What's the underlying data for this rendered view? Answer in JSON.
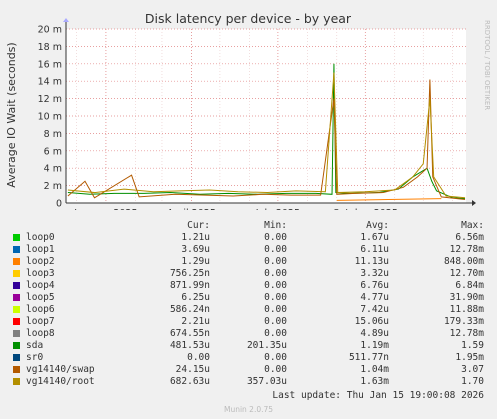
{
  "chart_data": {
    "type": "line",
    "title": "Disk latency per device - by year",
    "ylabel": "Average IO Wait (seconds)",
    "ylim": [
      0,
      0.02
    ],
    "y_ticks": [
      0,
      0.002,
      0.004,
      0.006,
      0.008,
      0.01,
      0.012,
      0.014,
      0.016,
      0.018,
      0.02
    ],
    "y_tick_labels": [
      "0",
      "2 m",
      "4 m",
      "6 m",
      "8 m",
      "10 m",
      "12 m",
      "14 m",
      "16 m",
      "18 m",
      "20 m"
    ],
    "x_tick_labels": [
      "January 2025",
      "April 2025",
      "July 2025",
      "October 2025"
    ],
    "x_range": [
      "2024-11-20",
      "2026-01-15"
    ],
    "x_ticks": [
      "2025-01-01",
      "2025-04-01",
      "2025-07-01",
      "2025-10-01"
    ],
    "grid": true,
    "series": [
      {
        "name": "loop0",
        "color": "#00cc00",
        "points": []
      },
      {
        "name": "loop1",
        "color": "#0066b3",
        "points": []
      },
      {
        "name": "loop2",
        "color": "#ff8000",
        "points": [
          [
            "2025-09-01",
            0.0003
          ],
          [
            "2025-12-20",
            0.0005
          ]
        ]
      },
      {
        "name": "loop3",
        "color": "#ffcc00",
        "points": []
      },
      {
        "name": "loop4",
        "color": "#330099",
        "points": []
      },
      {
        "name": "loop5",
        "color": "#990099",
        "points": []
      },
      {
        "name": "loop6",
        "color": "#ccff00",
        "points": []
      },
      {
        "name": "loop7",
        "color": "#ff0000",
        "points": []
      },
      {
        "name": "loop8",
        "color": "#808080",
        "points": []
      },
      {
        "name": "sda",
        "color": "#008f00",
        "points": [
          [
            "2024-11-22",
            0.0012
          ],
          [
            "2024-12-15",
            0.001
          ],
          [
            "2025-01-10",
            0.0011
          ],
          [
            "2025-02-10",
            0.0011
          ],
          [
            "2025-03-10",
            0.0012
          ],
          [
            "2025-04-10",
            0.001
          ],
          [
            "2025-05-10",
            0.0011
          ],
          [
            "2025-06-10",
            0.001
          ],
          [
            "2025-07-10",
            0.0011
          ],
          [
            "2025-08-10",
            0.0011
          ],
          [
            "2025-08-27",
            0.001
          ],
          [
            "2025-08-29",
            0.016
          ],
          [
            "2025-08-31",
            0.0012
          ],
          [
            "2025-09-15",
            0.0011
          ],
          [
            "2025-10-15",
            0.0012
          ],
          [
            "2025-11-05",
            0.0016
          ],
          [
            "2025-11-20",
            0.003
          ],
          [
            "2025-12-05",
            0.004
          ],
          [
            "2025-12-10",
            0.0025
          ],
          [
            "2025-12-15",
            0.0014
          ],
          [
            "2026-01-01",
            0.0006
          ],
          [
            "2026-01-14",
            0.0005
          ]
        ]
      },
      {
        "name": "sr0",
        "color": "#00487d",
        "points": []
      },
      {
        "name": "vg14140/swap",
        "color": "#b35a00",
        "points": [
          [
            "2024-11-22",
            0.0008
          ],
          [
            "2024-12-10",
            0.0025
          ],
          [
            "2024-12-20",
            0.0006
          ],
          [
            "2025-01-28",
            0.0032
          ],
          [
            "2025-02-05",
            0.0007
          ],
          [
            "2025-03-15",
            0.001
          ],
          [
            "2025-04-15",
            0.0009
          ],
          [
            "2025-05-15",
            0.0008
          ],
          [
            "2025-06-15",
            0.001
          ],
          [
            "2025-07-15",
            0.0009
          ],
          [
            "2025-08-15",
            0.0009
          ],
          [
            "2025-08-29",
            0.012
          ],
          [
            "2025-09-01",
            0.001
          ],
          [
            "2025-09-20",
            0.0011
          ],
          [
            "2025-10-20",
            0.0012
          ],
          [
            "2025-11-10",
            0.0018
          ],
          [
            "2025-11-25",
            0.003
          ],
          [
            "2025-12-05",
            0.004
          ],
          [
            "2025-12-08",
            0.0142
          ],
          [
            "2025-12-11",
            0.003
          ],
          [
            "2025-12-20",
            0.0007
          ],
          [
            "2026-01-14",
            0.0004
          ]
        ]
      },
      {
        "name": "vg14140/root",
        "color": "#b38f00",
        "points": [
          [
            "2024-11-22",
            0.0015
          ],
          [
            "2024-12-20",
            0.0012
          ],
          [
            "2025-01-20",
            0.0016
          ],
          [
            "2025-02-20",
            0.0013
          ],
          [
            "2025-03-20",
            0.0014
          ],
          [
            "2025-04-20",
            0.0015
          ],
          [
            "2025-05-20",
            0.0013
          ],
          [
            "2025-06-20",
            0.0012
          ],
          [
            "2025-07-20",
            0.0014
          ],
          [
            "2025-08-20",
            0.0013
          ],
          [
            "2025-08-29",
            0.015
          ],
          [
            "2025-09-02",
            0.0012
          ],
          [
            "2025-10-01",
            0.0013
          ],
          [
            "2025-11-01",
            0.0015
          ],
          [
            "2025-11-20",
            0.003
          ],
          [
            "2025-12-01",
            0.0045
          ],
          [
            "2025-12-08",
            0.012
          ],
          [
            "2025-12-12",
            0.003
          ],
          [
            "2025-12-25",
            0.0008
          ],
          [
            "2026-01-14",
            0.0006
          ]
        ]
      }
    ]
  },
  "rrdtool_label": "RRDTOOL / TOBI OETIKER",
  "legend": {
    "headers": {
      "cur": "Cur:",
      "min": "Min:",
      "avg": "Avg:",
      "max": "Max:"
    },
    "rows": [
      {
        "name": "loop0",
        "color": "#00cc00",
        "cur": "1.21u",
        "min": "0.00",
        "avg": "1.67u",
        "max": "6.56m"
      },
      {
        "name": "loop1",
        "color": "#0066b3",
        "cur": "3.69u",
        "min": "0.00",
        "avg": "6.11u",
        "max": "12.78m"
      },
      {
        "name": "loop2",
        "color": "#ff8000",
        "cur": "1.29u",
        "min": "0.00",
        "avg": "11.13u",
        "max": "848.00m"
      },
      {
        "name": "loop3",
        "color": "#ffcc00",
        "cur": "756.25n",
        "min": "0.00",
        "avg": "3.32u",
        "max": "12.70m"
      },
      {
        "name": "loop4",
        "color": "#330099",
        "cur": "871.99n",
        "min": "0.00",
        "avg": "6.76u",
        "max": "6.84m"
      },
      {
        "name": "loop5",
        "color": "#990099",
        "cur": "6.25u",
        "min": "0.00",
        "avg": "4.77u",
        "max": "31.90m"
      },
      {
        "name": "loop6",
        "color": "#ccff00",
        "cur": "586.24n",
        "min": "0.00",
        "avg": "7.42u",
        "max": "11.88m"
      },
      {
        "name": "loop7",
        "color": "#ff0000",
        "cur": "2.21u",
        "min": "0.00",
        "avg": "15.06u",
        "max": "179.33m"
      },
      {
        "name": "loop8",
        "color": "#808080",
        "cur": "674.55n",
        "min": "0.00",
        "avg": "4.89u",
        "max": "12.78m"
      },
      {
        "name": "sda",
        "color": "#008f00",
        "cur": "481.53u",
        "min": "201.35u",
        "avg": "1.19m",
        "max": "1.59"
      },
      {
        "name": "sr0",
        "color": "#00487d",
        "cur": "0.00",
        "min": "0.00",
        "avg": "511.77n",
        "max": "1.95m"
      },
      {
        "name": "vg14140/swap",
        "color": "#b35a00",
        "cur": "24.15u",
        "min": "0.00",
        "avg": "1.04m",
        "max": "3.07"
      },
      {
        "name": "vg14140/root",
        "color": "#b38f00",
        "cur": "682.63u",
        "min": "357.03u",
        "avg": "1.63m",
        "max": "1.70"
      }
    ]
  },
  "last_update": "Last update: Thu Jan 15 19:00:08 2026",
  "munin_version": "Munin 2.0.75"
}
